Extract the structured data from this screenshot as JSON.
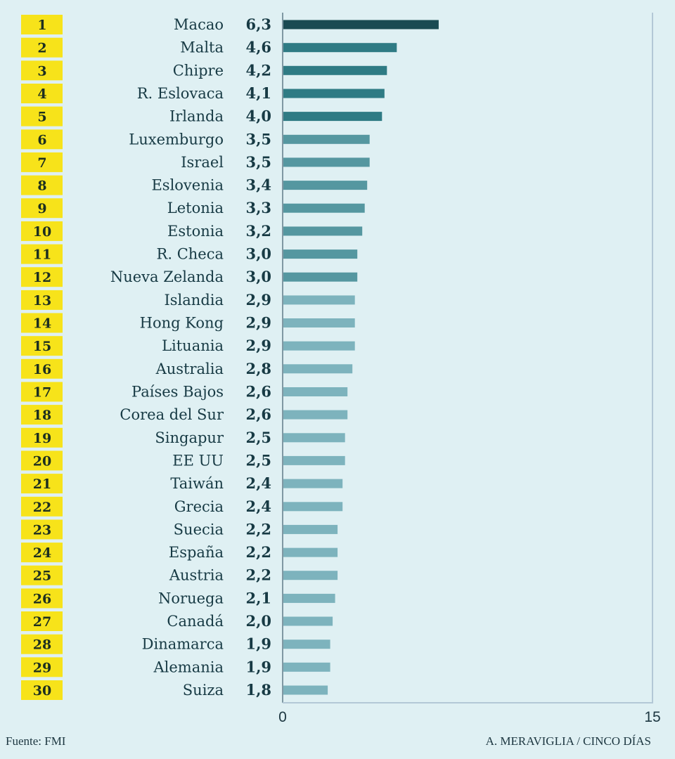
{
  "chart_data": {
    "type": "bar",
    "orientation": "horizontal",
    "title": "",
    "xlabel": "",
    "ylabel": "",
    "xlim": [
      0,
      15
    ],
    "x_ticks": [
      "0",
      "15"
    ],
    "grid": false,
    "legend": null,
    "decimal_separator": ",",
    "ranks": [
      "1",
      "2",
      "3",
      "4",
      "5",
      "6",
      "7",
      "8",
      "9",
      "10",
      "11",
      "12",
      "13",
      "14",
      "15",
      "16",
      "17",
      "18",
      "19",
      "20",
      "21",
      "22",
      "23",
      "24",
      "25",
      "26",
      "27",
      "28",
      "29",
      "30"
    ],
    "categories": [
      "Macao",
      "Malta",
      "Chipre",
      "R. Eslovaca",
      "Irlanda",
      "Luxemburgo",
      "Israel",
      "Eslovenia",
      "Letonia",
      "Estonia",
      "R. Checa",
      "Nueva Zelanda",
      "Islandia",
      "Hong Kong",
      "Lituania",
      "Australia",
      "Países Bajos",
      "Corea del Sur",
      "Singapur",
      "EE UU",
      "Taiwán",
      "Grecia",
      "Suecia",
      "España",
      "Austria",
      "Noruega",
      "Canadá",
      "Dinamarca",
      "Alemania",
      "Suiza"
    ],
    "values": [
      6.3,
      4.6,
      4.2,
      4.1,
      4.0,
      3.5,
      3.5,
      3.4,
      3.3,
      3.2,
      3.0,
      3.0,
      2.9,
      2.9,
      2.9,
      2.8,
      2.6,
      2.6,
      2.5,
      2.5,
      2.4,
      2.4,
      2.2,
      2.2,
      2.2,
      2.1,
      2.0,
      1.9,
      1.9,
      1.8
    ],
    "value_labels": [
      "6,3",
      "4,6",
      "4,2",
      "4,1",
      "4,0",
      "3,5",
      "3,5",
      "3,4",
      "3,3",
      "3,2",
      "3,0",
      "3,0",
      "2,9",
      "2,9",
      "2,9",
      "2,8",
      "2,6",
      "2,6",
      "2,5",
      "2,5",
      "2,4",
      "2,4",
      "2,2",
      "2,2",
      "2,2",
      "2,1",
      "2,0",
      "1,9",
      "1,9",
      "1,8"
    ],
    "color_tiers": [
      {
        "from_rank": 1,
        "to_rank": 1,
        "color": "#1a4a52"
      },
      {
        "from_rank": 2,
        "to_rank": 5,
        "color": "#2f7b84"
      },
      {
        "from_rank": 6,
        "to_rank": 12,
        "color": "#5597a0"
      },
      {
        "from_rank": 13,
        "to_rank": 30,
        "color": "#7db3bd"
      }
    ],
    "colors": {
      "background": "#dff0f3",
      "rank_highlight": "#f7e31a",
      "text": "#173a44"
    }
  },
  "footer": {
    "source": "Fuente: FMI",
    "credit": "A. MERAVIGLIA / CINCO DÍAS"
  }
}
